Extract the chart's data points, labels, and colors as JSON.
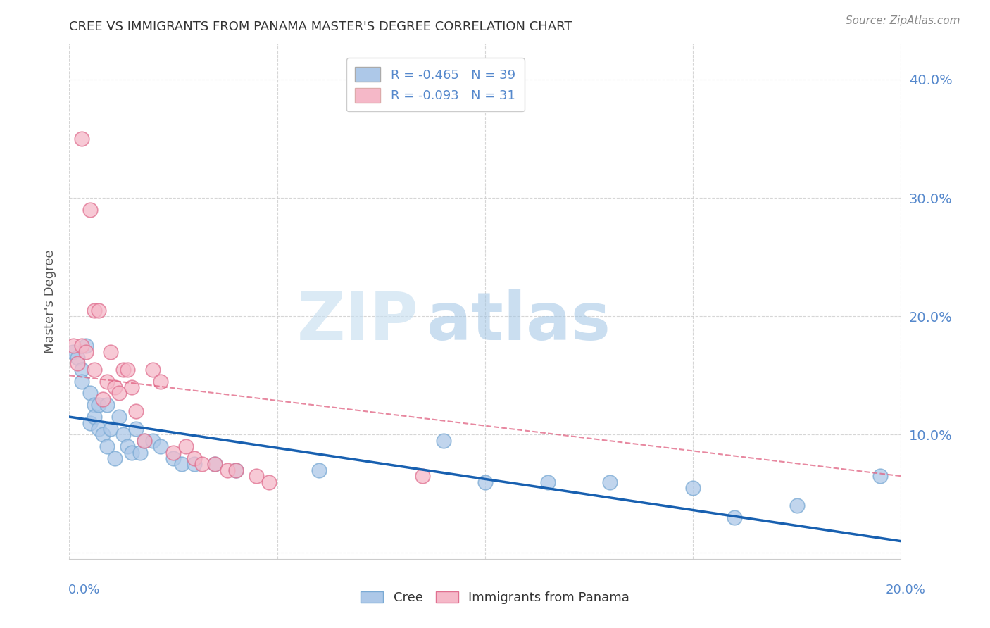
{
  "title": "CREE VS IMMIGRANTS FROM PANAMA MASTER'S DEGREE CORRELATION CHART",
  "source": "Source: ZipAtlas.com",
  "ylabel": "Master's Degree",
  "ytick_values": [
    0.0,
    0.1,
    0.2,
    0.3,
    0.4
  ],
  "xlim": [
    0,
    0.2
  ],
  "ylim": [
    -0.005,
    0.43
  ],
  "watermark_zip": "ZIP",
  "watermark_atlas": "atlas",
  "legend_entries": [
    {
      "label": "R = -0.465   N = 39",
      "color": "#adc8e8"
    },
    {
      "label": "R = -0.093   N = 31",
      "color": "#f5b8c8"
    }
  ],
  "cree_scatter": {
    "color": "#adc8e8",
    "edge_color": "#7aaad4",
    "x": [
      0.001,
      0.002,
      0.003,
      0.003,
      0.004,
      0.005,
      0.005,
      0.006,
      0.006,
      0.007,
      0.007,
      0.008,
      0.009,
      0.009,
      0.01,
      0.011,
      0.012,
      0.013,
      0.014,
      0.015,
      0.016,
      0.017,
      0.018,
      0.02,
      0.022,
      0.025,
      0.027,
      0.03,
      0.035,
      0.04,
      0.06,
      0.09,
      0.1,
      0.115,
      0.13,
      0.15,
      0.16,
      0.175,
      0.195
    ],
    "y": [
      0.17,
      0.165,
      0.155,
      0.145,
      0.175,
      0.135,
      0.11,
      0.125,
      0.115,
      0.125,
      0.105,
      0.1,
      0.125,
      0.09,
      0.105,
      0.08,
      0.115,
      0.1,
      0.09,
      0.085,
      0.105,
      0.085,
      0.095,
      0.095,
      0.09,
      0.08,
      0.075,
      0.075,
      0.075,
      0.07,
      0.07,
      0.095,
      0.06,
      0.06,
      0.06,
      0.055,
      0.03,
      0.04,
      0.065
    ]
  },
  "panama_scatter": {
    "color": "#f5b8c8",
    "edge_color": "#e07090",
    "x": [
      0.001,
      0.002,
      0.003,
      0.003,
      0.004,
      0.005,
      0.006,
      0.006,
      0.007,
      0.008,
      0.009,
      0.01,
      0.011,
      0.012,
      0.013,
      0.014,
      0.015,
      0.016,
      0.018,
      0.02,
      0.022,
      0.025,
      0.028,
      0.03,
      0.032,
      0.035,
      0.038,
      0.04,
      0.045,
      0.048,
      0.085
    ],
    "y": [
      0.175,
      0.16,
      0.35,
      0.175,
      0.17,
      0.29,
      0.155,
      0.205,
      0.205,
      0.13,
      0.145,
      0.17,
      0.14,
      0.135,
      0.155,
      0.155,
      0.14,
      0.12,
      0.095,
      0.155,
      0.145,
      0.085,
      0.09,
      0.08,
      0.075,
      0.075,
      0.07,
      0.07,
      0.065,
      0.06,
      0.065
    ]
  },
  "cree_line": {
    "color": "#1860b0",
    "x_start": 0.0,
    "x_end": 0.2,
    "y_start": 0.115,
    "y_end": 0.01
  },
  "panama_line": {
    "color": "#e06080",
    "linestyle": "dashed",
    "x_start": 0.0,
    "x_end": 0.2,
    "y_start": 0.15,
    "y_end": 0.065
  },
  "background_color": "#ffffff",
  "grid_color": "#cccccc",
  "title_color": "#333333",
  "axis_label_color": "#555555",
  "tick_color": "#5588cc"
}
